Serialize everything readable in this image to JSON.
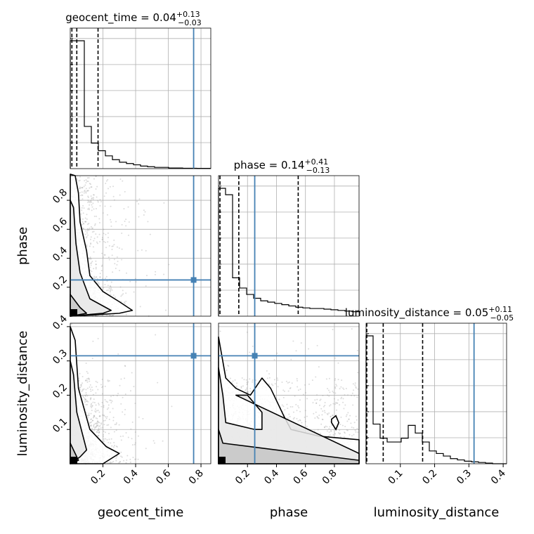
{
  "chart_data": {
    "type": "corner",
    "parameters": [
      "geocent_time",
      "phase",
      "luminosity_distance"
    ],
    "axis_ranges": {
      "geocent_time": [
        0.0,
        0.86
      ],
      "phase": [
        0.0,
        0.97
      ],
      "luminosity_distance": [
        0.0,
        0.41
      ]
    },
    "tick_labels": {
      "geocent_time": [
        "0.2",
        "0.4",
        "0.6",
        "0.8"
      ],
      "phase": [
        "0.2",
        "0.4",
        "0.6",
        "0.8"
      ],
      "luminosity_distance": [
        "0.1",
        "0.2",
        "0.3",
        "0.4"
      ]
    },
    "truths": {
      "geocent_time": 0.755,
      "phase": 0.25,
      "luminosity_distance": 0.315
    },
    "grid": true,
    "truth_color": "#4682b4",
    "histograms": [
      {
        "param": "geocent_time",
        "title_name": "geocent_time",
        "title_median": "0.04",
        "title_plus": "+0.13",
        "title_minus": "−0.03",
        "quantiles": [
          0.01,
          0.04,
          0.17
        ],
        "bin_width": 0.043,
        "counts": [
          1.0,
          1.0,
          0.33,
          0.2,
          0.14,
          0.1,
          0.07,
          0.05,
          0.04,
          0.03,
          0.02,
          0.015,
          0.01,
          0.01,
          0.005,
          0.005,
          0.003,
          0.003,
          0.002,
          0.002
        ]
      },
      {
        "param": "phase",
        "title_name": "phase",
        "title_median": "0.14",
        "title_plus": "+0.41",
        "title_minus": "−0.13",
        "quantiles": [
          0.01,
          0.14,
          0.55
        ],
        "bin_width": 0.0485,
        "counts": [
          1.0,
          0.95,
          0.3,
          0.22,
          0.17,
          0.14,
          0.12,
          0.11,
          0.1,
          0.09,
          0.08,
          0.07,
          0.065,
          0.06,
          0.06,
          0.055,
          0.05,
          0.045,
          0.04,
          0.035
        ]
      },
      {
        "param": "luminosity_distance",
        "title_name": "luminosity_distance",
        "title_median": "0.05",
        "title_plus": "+0.11",
        "title_minus": "−0.05",
        "quantiles": [
          0.0,
          0.05,
          0.165
        ],
        "bin_width": 0.0205,
        "counts": [
          1.0,
          0.31,
          0.2,
          0.17,
          0.17,
          0.2,
          0.3,
          0.24,
          0.17,
          0.1,
          0.08,
          0.06,
          0.04,
          0.03,
          0.02,
          0.015,
          0.01,
          0.005,
          0.0,
          0.0
        ]
      }
    ],
    "contours": [
      {
        "x": "geocent_time",
        "y": "phase",
        "levels": [
          [
            [
              0.0,
              0.98
            ],
            [
              0.03,
              0.97
            ],
            [
              0.05,
              0.85
            ],
            [
              0.06,
              0.65
            ],
            [
              0.1,
              0.45
            ],
            [
              0.12,
              0.28
            ],
            [
              0.2,
              0.17
            ],
            [
              0.3,
              0.1
            ],
            [
              0.38,
              0.04
            ],
            [
              0.3,
              0.02
            ],
            [
              0.0,
              0.0
            ]
          ],
          [
            [
              0.0,
              0.8
            ],
            [
              0.02,
              0.75
            ],
            [
              0.035,
              0.5
            ],
            [
              0.06,
              0.3
            ],
            [
              0.12,
              0.12
            ],
            [
              0.25,
              0.04
            ],
            [
              0.2,
              0.02
            ],
            [
              0.0,
              0.0
            ]
          ],
          [
            [
              0.0,
              0.15
            ],
            [
              0.02,
              0.12
            ],
            [
              0.06,
              0.06
            ],
            [
              0.1,
              0.02
            ],
            [
              0.0,
              0.0
            ]
          ]
        ]
      },
      {
        "x": "geocent_time",
        "y": "luminosity_distance",
        "levels": [
          [
            [
              0.0,
              0.4
            ],
            [
              0.03,
              0.36
            ],
            [
              0.05,
              0.22
            ],
            [
              0.12,
              0.1
            ],
            [
              0.22,
              0.05
            ],
            [
              0.3,
              0.03
            ],
            [
              0.2,
              0.0
            ],
            [
              0.0,
              0.0
            ]
          ],
          [
            [
              0.0,
              0.3
            ],
            [
              0.02,
              0.26
            ],
            [
              0.04,
              0.15
            ],
            [
              0.1,
              0.04
            ],
            [
              0.06,
              0.02
            ],
            [
              0.0,
              0.0
            ]
          ],
          [
            [
              0.0,
              0.06
            ],
            [
              0.03,
              0.03
            ],
            [
              0.05,
              0.01
            ],
            [
              0.0,
              0.0
            ]
          ]
        ]
      },
      {
        "x": "phase",
        "y": "luminosity_distance",
        "levels": [
          [
            [
              0.0,
              0.37
            ],
            [
              0.05,
              0.25
            ],
            [
              0.12,
              0.22
            ],
            [
              0.22,
              0.2
            ],
            [
              0.3,
              0.25
            ],
            [
              0.36,
              0.22
            ],
            [
              0.45,
              0.14
            ],
            [
              0.5,
              0.1
            ],
            [
              0.7,
              0.08
            ],
            [
              0.97,
              0.07
            ],
            [
              0.97,
              0.0
            ],
            [
              0.0,
              0.0
            ]
          ],
          [
            [
              0.0,
              0.28
            ],
            [
              0.03,
              0.2
            ],
            [
              0.05,
              0.12
            ],
            [
              0.25,
              0.1
            ],
            [
              0.3,
              0.1
            ],
            [
              0.3,
              0.15
            ],
            [
              0.2,
              0.2
            ],
            [
              0.12,
              0.2
            ],
            [
              0.97,
              0.03
            ],
            [
              0.97,
              0.0
            ],
            [
              0.0,
              0.0
            ]
          ],
          [
            [
              0.0,
              0.1
            ],
            [
              0.03,
              0.06
            ],
            [
              0.97,
              0.01
            ],
            [
              0.97,
              0.0
            ],
            [
              0.0,
              0.0
            ]
          ]
        ],
        "islands": [
          [
            [
              0.78,
              0.13
            ],
            [
              0.81,
              0.14
            ],
            [
              0.83,
              0.12
            ],
            [
              0.81,
              0.1
            ],
            [
              0.78,
              0.12
            ]
          ]
        ]
      }
    ]
  }
}
